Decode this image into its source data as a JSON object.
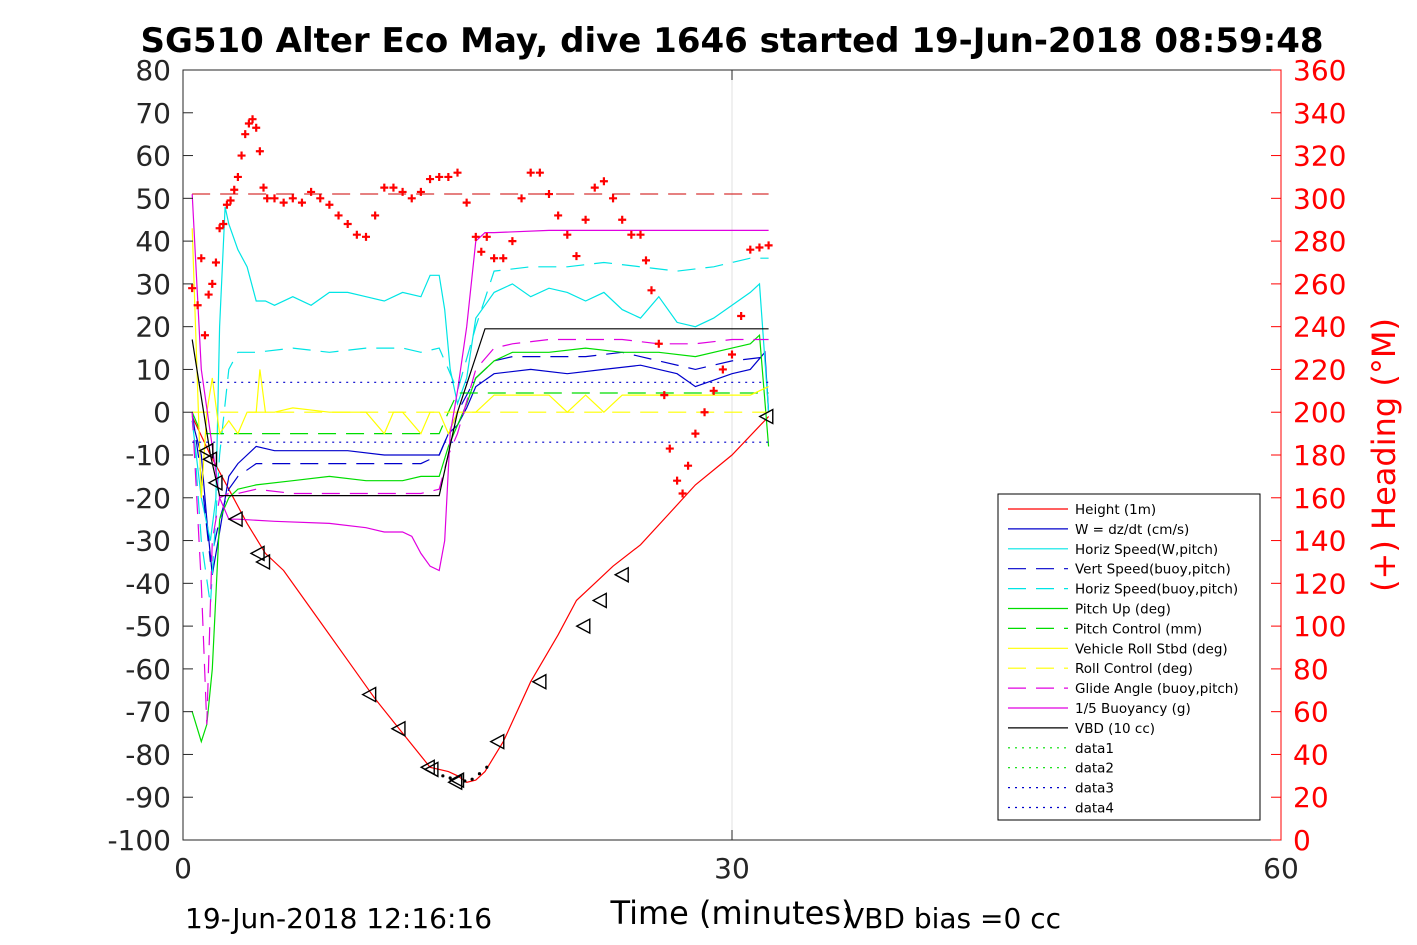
{
  "chart_data": {
    "type": "line",
    "title": "SG510 Alter Eco May, dive 1646 started 19-Jun-2018 08:59:48",
    "xlabel": "Time (minutes)",
    "ylabel_right": "(+) Heading (°M)",
    "xlim": [
      0,
      60
    ],
    "ylim": [
      -100,
      80
    ],
    "ylim_right": [
      0,
      360
    ],
    "xticks": [
      "0",
      "30",
      "60"
    ],
    "yticks": [
      "80",
      "70",
      "60",
      "50",
      "40",
      "30",
      "20",
      "10",
      "0",
      "-10",
      "-20",
      "-30",
      "-40",
      "-50",
      "-60",
      "-70",
      "-80",
      "-90",
      "-100"
    ],
    "yticks_right": [
      "360",
      "340",
      "320",
      "300",
      "280",
      "260",
      "240",
      "220",
      "200",
      "180",
      "160",
      "140",
      "120",
      "100",
      "80",
      "60",
      "40",
      "20",
      "0"
    ],
    "grid": "x-at-30",
    "legend_position": "bottom-right",
    "footer_left": "19-Jun-2018 12:16:16",
    "footer_right": "VBD bias =0 cc",
    "colors": {
      "height": "#ff0000",
      "w": "#0000cc",
      "cyan": "#00e5e5",
      "green": "#00dd00",
      "yellow": "#ffff00",
      "magenta": "#e000e0",
      "black": "#000000",
      "heading": "#ff0000"
    },
    "series": [
      {
        "name": "Height (1m)",
        "style": "solid",
        "color": "#ff0000",
        "x": [
          0.5,
          1.5,
          2.5,
          3.5,
          4.5,
          5.5,
          7,
          9,
          10.5,
          12,
          13.5,
          14.5,
          15,
          15.5,
          16,
          16.5,
          17.5,
          19,
          20.5,
          21.5,
          22.5,
          23.5,
          25,
          26.5,
          28,
          30,
          32
        ],
        "y": [
          -1,
          -10,
          -18,
          -26,
          -33,
          -37,
          -46,
          -58,
          -67,
          -75,
          -83,
          -84,
          -85,
          -86.5,
          -86,
          -84,
          -77,
          -63,
          -52,
          -44,
          -40,
          -36,
          -31,
          -24,
          -17,
          -10,
          -1
        ]
      },
      {
        "name": "W = dz/dt (cm/s)",
        "style": "solid",
        "color": "#0000cc",
        "x": [
          0.5,
          1,
          1.3,
          1.6,
          2,
          2.5,
          3,
          4,
          5,
          7,
          9,
          11,
          13,
          14,
          14.5,
          15,
          15.5,
          16,
          17,
          19,
          21,
          23,
          25,
          27,
          28,
          30,
          31,
          31.8,
          32
        ],
        "y": [
          -2,
          -10,
          -25,
          -38,
          -28,
          -15,
          -12,
          -8,
          -9,
          -9,
          -9,
          -10,
          -10,
          -10,
          -5,
          -3,
          1,
          6,
          9,
          10,
          9,
          10,
          11,
          9,
          6,
          9,
          10,
          14,
          0
        ]
      },
      {
        "name": "Horiz Speed(W,pitch)",
        "style": "solid",
        "color": "#00e5e5",
        "x": [
          0.5,
          1,
          1.5,
          1.8,
          2,
          2.3,
          2.5,
          3,
          3.5,
          4,
          4.5,
          5,
          6,
          7,
          8,
          9,
          10,
          11,
          12,
          13,
          13.5,
          14,
          14.3,
          14.6,
          15,
          15.5,
          16,
          16.5,
          17,
          18,
          19,
          20,
          21,
          22,
          23,
          24,
          25,
          26,
          27,
          28,
          29,
          30,
          31,
          31.5,
          32
        ],
        "y": [
          -2,
          -20,
          -30,
          -20,
          20,
          48,
          44,
          38,
          34,
          26,
          26,
          25,
          27,
          25,
          28,
          28,
          27,
          26,
          28,
          27,
          32,
          32,
          24,
          10,
          2,
          8,
          22,
          25,
          28,
          30,
          27,
          29,
          28,
          26,
          28,
          24,
          22,
          27,
          21,
          20,
          22,
          25,
          28,
          30,
          0
        ]
      },
      {
        "name": "Vert Speed(buoy,pitch)",
        "style": "dash",
        "color": "#0000cc",
        "x": [
          0.5,
          1,
          1.5,
          2,
          2.5,
          3,
          4,
          6,
          8,
          10,
          12,
          13,
          14,
          14.5,
          15,
          16,
          17,
          18,
          20,
          22,
          24,
          26,
          28,
          30,
          32
        ],
        "y": [
          0,
          -15,
          -35,
          -25,
          -18,
          -15,
          -12,
          -12,
          -12,
          -12,
          -12,
          -12,
          -10,
          -5,
          0,
          8,
          12,
          13,
          13,
          13,
          14,
          12,
          10,
          12,
          13
        ]
      },
      {
        "name": "Horiz Speed(buoy,pitch)",
        "style": "dash",
        "color": "#00e5e5",
        "x": [
          0.5,
          1,
          1.5,
          2,
          2.5,
          3,
          4,
          6,
          8,
          10,
          12,
          13,
          14,
          14.5,
          15,
          16,
          17,
          19,
          21,
          23,
          25,
          27,
          29,
          31,
          32
        ],
        "y": [
          0,
          -30,
          -45,
          -10,
          10,
          14,
          14,
          15,
          14,
          15,
          15,
          14,
          15,
          10,
          5,
          20,
          33,
          34,
          34,
          35,
          34,
          33,
          34,
          36,
          36
        ]
      },
      {
        "name": "Pitch Up (deg)",
        "style": "solid",
        "color": "#00dd00",
        "x": [
          0.5,
          1,
          1.3,
          1.6,
          2,
          2.5,
          3,
          4,
          6,
          8,
          10,
          12,
          13,
          14,
          14.5,
          15,
          15.5,
          16,
          17,
          18,
          20,
          22,
          24,
          26,
          28,
          30,
          31,
          31.5,
          32
        ],
        "y": [
          -70,
          -77,
          -73,
          -60,
          -25,
          -20,
          -18,
          -17,
          -16,
          -15,
          -16,
          -16,
          -15,
          -15,
          -8,
          -3,
          2,
          8,
          12,
          14,
          14,
          15,
          14,
          14,
          13,
          15,
          16,
          18,
          -8
        ]
      },
      {
        "name": "Pitch Control (mm)",
        "style": "dash",
        "color": "#00dd00",
        "x": [
          0.5,
          1,
          2,
          2.5,
          14,
          14.5,
          15,
          31,
          32
        ],
        "y": [
          0,
          -5,
          -5,
          -5,
          -5,
          0,
          4.5,
          4.5,
          4.5
        ]
      },
      {
        "name": "Vehicle Roll Stbd (deg)",
        "style": "solid",
        "color": "#ffff00",
        "x": [
          0.5,
          1,
          1.3,
          1.6,
          2,
          2.5,
          3,
          3.5,
          4,
          4.2,
          4.5,
          5,
          6,
          8,
          10,
          11,
          11.5,
          12,
          13,
          13.5,
          14,
          14.5,
          15,
          16,
          17,
          18,
          19,
          20,
          21,
          22,
          23,
          24,
          25,
          26,
          27,
          28,
          29,
          30,
          31,
          32
        ],
        "y": [
          43,
          -20,
          0,
          8,
          -5,
          -2,
          -5,
          0,
          0,
          10,
          0,
          0,
          1,
          0,
          0,
          -5,
          0,
          0,
          -5,
          0,
          0,
          -5,
          0,
          0,
          4,
          4,
          4,
          4,
          0,
          4,
          0,
          4,
          4,
          4,
          4,
          4,
          4,
          4,
          4,
          6
        ]
      },
      {
        "name": "Roll Control (deg)",
        "style": "dash",
        "color": "#ffff00",
        "x": [
          0.5,
          32
        ],
        "y": [
          0,
          0
        ]
      },
      {
        "name": "Glide Angle (buoy,pitch)",
        "style": "dash",
        "color": "#e000e0",
        "x": [
          0.5,
          1,
          1.3,
          1.6,
          2,
          2.5,
          3,
          4,
          6,
          8,
          10,
          12,
          13,
          14,
          14.5,
          15,
          16,
          17,
          18,
          20,
          22,
          24,
          26,
          28,
          30,
          32
        ],
        "y": [
          0,
          -40,
          -73,
          -30,
          -20,
          -19,
          -19,
          -18,
          -19,
          -19,
          -19,
          -19,
          -19,
          -18,
          -10,
          -5,
          10,
          15,
          16,
          17,
          17,
          17,
          16,
          16,
          17,
          17
        ]
      },
      {
        "name": "1/5 Buoyancy (g)",
        "style": "solid",
        "color": "#e000e0",
        "x": [
          0.5,
          1,
          1.5,
          2,
          2.5,
          3,
          5,
          8,
          10,
          11,
          12,
          12.5,
          13,
          13.5,
          14,
          14.3,
          14.6,
          15,
          15.5,
          16,
          16.5,
          17,
          20,
          25,
          30,
          32
        ],
        "y": [
          51,
          10,
          -5,
          -20,
          -25,
          -25,
          -25.5,
          -26,
          -27,
          -28,
          -28,
          -29,
          -33,
          -36,
          -37,
          -30,
          -5,
          5,
          20,
          40,
          42,
          42,
          42.5,
          42.5,
          42.5,
          42.5
        ]
      },
      {
        "name": "VBD (10 cc)",
        "style": "solid",
        "color": "#000000",
        "x": [
          0.5,
          1.5,
          2,
          13.5,
          14,
          15,
          16.5,
          17,
          32
        ],
        "y": [
          17,
          -10,
          -19.5,
          -19.5,
          -19.5,
          0,
          19.5,
          19.5,
          19.5
        ]
      },
      {
        "name": "data1",
        "style": "dot",
        "color": "#00dd00",
        "x": [],
        "y": []
      },
      {
        "name": "data2",
        "style": "dot",
        "color": "#00dd00",
        "x": [],
        "y": []
      },
      {
        "name": "data3",
        "style": "dot",
        "color": "#0000cc",
        "x": [
          0.5,
          32
        ],
        "y": [
          7,
          7
        ]
      },
      {
        "name": "data4",
        "style": "dot",
        "color": "#0000cc",
        "x": [
          0.5,
          32
        ],
        "y": [
          -7,
          -7
        ]
      }
    ],
    "heading_reference_deg": 302,
    "heading_points": {
      "marker": "+",
      "color": "#ff0000",
      "x": [
        0.5,
        0.8,
        1,
        1.2,
        1.4,
        1.6,
        1.8,
        2,
        2.2,
        2.4,
        2.6,
        2.8,
        3,
        3.2,
        3.4,
        3.6,
        3.8,
        4,
        4.2,
        4.4,
        4.6,
        5,
        5.5,
        6,
        6.5,
        7,
        7.5,
        8,
        8.5,
        9,
        9.5,
        10,
        10.5,
        11,
        11.5,
        12,
        12.5,
        13,
        13.5,
        14,
        14.5,
        15,
        15.5,
        16,
        16.3,
        16.6,
        17,
        17.5,
        18,
        18.5,
        19,
        19.5,
        20,
        20.5,
        21,
        21.5,
        22,
        22.5,
        23,
        23.5,
        24,
        24.5,
        25,
        25.3,
        25.6,
        26,
        26.3,
        26.6,
        27,
        27.3,
        27.6,
        28,
        28.5,
        29,
        29.5,
        30,
        30.5,
        31,
        31.5,
        32
      ],
      "y": [
        258,
        250,
        272,
        236,
        255,
        260,
        270,
        286,
        288,
        297,
        299,
        304,
        310,
        320,
        330,
        335,
        337,
        333,
        322,
        305,
        300,
        300,
        298,
        300,
        298,
        303,
        300,
        297,
        292,
        288,
        283,
        282,
        292,
        305,
        305,
        303,
        300,
        303,
        309,
        310,
        310,
        312,
        298,
        282,
        275,
        282,
        272,
        272,
        280,
        300,
        312,
        312,
        302,
        292,
        283,
        273,
        290,
        305,
        308,
        300,
        290,
        283,
        283,
        271,
        257,
        232,
        208,
        183,
        168,
        162,
        175,
        190,
        200,
        210,
        220,
        227,
        245,
        276,
        277,
        278
      ],
      "x_fix": [
        0.2,
        0.5,
        0.7,
        1.1,
        1.3,
        1.7,
        2.1,
        2.6,
        3.1,
        3.6,
        4.1,
        4.6,
        5.1,
        5.6,
        6.1,
        6.6,
        7.1,
        7.6,
        8.1,
        8.6,
        9.1,
        9.6,
        10.1,
        10.6,
        11.1,
        11.6,
        12.1,
        12.6,
        13.1,
        13.6,
        14.1,
        14.6,
        15.1,
        15.6,
        16.1,
        16.6,
        17.1,
        17.6,
        18.1,
        18.6,
        19.1,
        19.6,
        20.1,
        20.6,
        21.1,
        21.6,
        22.1,
        22.6,
        23.1,
        23.6,
        24.1,
        24.6,
        25.1,
        25.6,
        26.1,
        26.6,
        27.1,
        27.6,
        28.1,
        28.6,
        29.1,
        29.6,
        30.1,
        30.6,
        31.1,
        31.6,
        32.1
      ]
    },
    "depth_markers": {
      "marker": "triangle",
      "x": [
        1.3,
        1.5,
        1.8,
        2.9,
        4.1,
        4.4,
        10.2,
        11.8,
        13.4,
        13.6,
        14.9,
        15.0,
        17.2,
        19.5,
        21.9,
        22.8,
        24.0,
        31.9
      ],
      "y": [
        -9,
        -11,
        -16.5,
        -25,
        -33,
        -35,
        -66,
        -74,
        -83,
        -83.5,
        -86.5,
        -86,
        -77,
        -63,
        -50,
        -44,
        -38,
        -1
      ]
    }
  }
}
